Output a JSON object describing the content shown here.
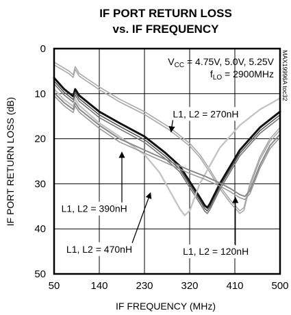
{
  "chart_data": {
    "type": "line",
    "title": [
      "IF PORT RETURN LOSS",
      "vs. IF FREQUENCY"
    ],
    "xlabel": "IF FREQUENCY (MHz)",
    "ylabel": "IF PORT RETURN LOSS (dB)",
    "xlim": [
      50,
      500
    ],
    "ylim": [
      0,
      50
    ],
    "y_inverted": true,
    "grid": true,
    "xticks": [
      50,
      140,
      230,
      320,
      410,
      500
    ],
    "yticks": [
      0,
      10,
      20,
      30,
      40,
      50
    ],
    "conditions": {
      "vcc_prefix": "V",
      "vcc_sub": "CC",
      "vcc_values": " = 4.75V, 5.0V, 5.25V",
      "flo_prefix": "f",
      "flo_sub": "LO",
      "flo_value": " = 2900MHz"
    },
    "code": "MAX19996A toc32",
    "series": [
      {
        "name": "L1, L2 = 270nH",
        "color": "#a8a8a8",
        "width": 1.6,
        "x": [
          50,
          80,
          88,
          92,
          100,
          140,
          180,
          230,
          280,
          320,
          340,
          360,
          380,
          400,
          420,
          428,
          440,
          460,
          480,
          500
        ],
        "y": [
          3,
          5,
          5.8,
          4,
          5.5,
          8.5,
          11.2,
          14,
          17.5,
          21,
          23.5,
          26.8,
          30.5,
          33.5,
          36,
          35.3,
          30,
          24,
          20,
          17.5
        ]
      },
      {
        "name": "L1, L2 = 270nH",
        "color": "#a8a8a8",
        "width": 1.6,
        "x": [
          50,
          80,
          88,
          92,
          100,
          140,
          180,
          230,
          280,
          320,
          340,
          360,
          380,
          400,
          420,
          428,
          440,
          460,
          480,
          500
        ],
        "y": [
          3.6,
          5.6,
          6.4,
          4.6,
          6.1,
          9.1,
          11.8,
          14.6,
          18.1,
          21.6,
          24.1,
          27.4,
          31.1,
          34.1,
          36.6,
          35.9,
          30.6,
          24.6,
          20.6,
          18.1
        ]
      },
      {
        "name": "L1, L2 = 390nH",
        "color": "#111111",
        "width": 3,
        "x": [
          50,
          70,
          88,
          92,
          100,
          140,
          180,
          230,
          270,
          300,
          320,
          340,
          350,
          355,
          360,
          380,
          420,
          460,
          500
        ],
        "y": [
          6.5,
          9,
          10.6,
          9,
          10.4,
          14,
          16.5,
          19.5,
          23,
          26,
          29.5,
          33,
          34.8,
          35.3,
          34.5,
          30,
          22.5,
          17.5,
          14
        ]
      },
      {
        "name": "L1, L2 = 390nH",
        "color": "#555555",
        "width": 1.6,
        "x": [
          50,
          70,
          88,
          92,
          100,
          140,
          180,
          230,
          270,
          300,
          320,
          340,
          350,
          355,
          360,
          380,
          420,
          460,
          500
        ],
        "y": [
          7.2,
          9.7,
          11.3,
          9.7,
          11.1,
          14.7,
          17.2,
          20.2,
          23.7,
          26.7,
          30.2,
          33.7,
          35.5,
          36,
          35.2,
          30.7,
          23.2,
          18.2,
          14.7
        ]
      },
      {
        "name": "L1, L2 = 390nH",
        "color": "#777777",
        "width": 1.6,
        "x": [
          50,
          70,
          88,
          92,
          100,
          140,
          180,
          230,
          270,
          300,
          320,
          340,
          350,
          355,
          360,
          380,
          420,
          460,
          500
        ],
        "y": [
          7.8,
          10.3,
          11.9,
          10.3,
          11.7,
          15.3,
          17.8,
          20.8,
          24.3,
          27.3,
          30.8,
          34.3,
          36.1,
          36.6,
          35.8,
          31.3,
          23.8,
          18.8,
          15.3
        ]
      },
      {
        "name": "L1, L2 = 470nH",
        "color": "#c4c4c4",
        "width": 2.4,
        "x": [
          50,
          70,
          88,
          92,
          100,
          140,
          180,
          230,
          260,
          280,
          300,
          310,
          320,
          340,
          380,
          420,
          460,
          500
        ],
        "y": [
          9,
          11.3,
          12.8,
          11.2,
          12.6,
          16.5,
          19.5,
          23.5,
          27.5,
          31.5,
          35.5,
          37,
          36,
          30,
          22,
          17,
          13.5,
          11
        ]
      },
      {
        "name": "L1, L2 = 120nH",
        "color": "#888888",
        "width": 2,
        "x": [
          50,
          70,
          88,
          92,
          100,
          140,
          180,
          230,
          280,
          320,
          350,
          380,
          400,
          420,
          430,
          440,
          460,
          480,
          500
        ],
        "y": [
          9.8,
          12,
          13.5,
          12,
          13.4,
          17,
          20,
          22.5,
          25,
          27,
          28.3,
          29.8,
          31,
          32.4,
          32.8,
          31.5,
          25.8,
          21.5,
          19
        ]
      },
      {
        "name": "L1, L2 = 120nH",
        "color": "#999999",
        "width": 1.6,
        "x": [
          50,
          70,
          88,
          92,
          100,
          140,
          180,
          230,
          280,
          320,
          350,
          380,
          400,
          420,
          430,
          440,
          460,
          480,
          500
        ],
        "y": [
          10.5,
          12.7,
          14.2,
          12.7,
          14.1,
          17.7,
          20.7,
          23.2,
          25.7,
          27.7,
          29,
          30.5,
          31.7,
          33.1,
          33.5,
          32.2,
          26.5,
          22.2,
          19.7
        ]
      }
    ],
    "annotations": [
      {
        "text": "L1, L2 = 270nH",
        "x": 352,
        "y": 14.5,
        "arrow_to": [
          283,
          18.5
        ]
      },
      {
        "text": "L1, L2 = 390nH",
        "x": 130,
        "y": 35.5,
        "arrow_to": [
          185,
          23
        ]
      },
      {
        "text": "L1, L2 = 470nH",
        "x": 140,
        "y": 44.5,
        "arrow_to": [
          242,
          32
        ]
      },
      {
        "text": "L1, L2 = 120nH",
        "x": 372,
        "y": 45,
        "arrow_to": [
          411,
          33
        ]
      }
    ]
  }
}
